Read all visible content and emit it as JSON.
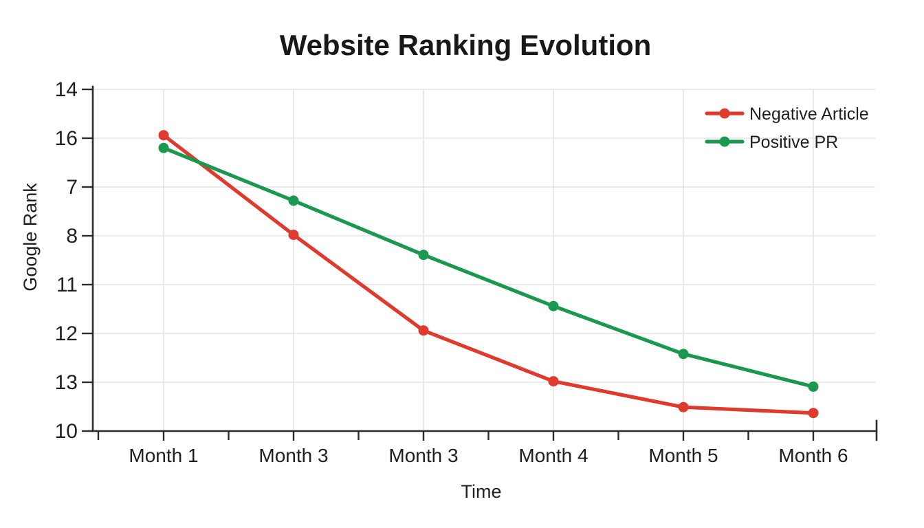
{
  "chart_data": {
    "type": "line",
    "title": "Website Ranking Evolution",
    "xlabel": "Time",
    "ylabel": "Google Rank",
    "categories": [
      "Month 1",
      "Month 3",
      "Month 3",
      "Month 4",
      "Month 5",
      "Month 6"
    ],
    "y_tick_labels_top_to_bottom": [
      "14",
      "16",
      "7",
      "8",
      "11",
      "12",
      "13",
      "10"
    ],
    "grid": true,
    "legend_position": "top-right-inside",
    "series": [
      {
        "name": "Negative Article",
        "color": "#e0392d",
        "values_grid_steps_from_top": [
          0.94,
          2.98,
          4.94,
          5.98,
          6.51,
          6.63
        ]
      },
      {
        "name": "Positive PR",
        "color": "#1a9850",
        "values_grid_steps_from_top": [
          1.2,
          2.28,
          3.39,
          4.44,
          5.42,
          6.09
        ]
      }
    ],
    "style_colors": {
      "grid": "#e4e4e4",
      "axis": "#2b2b2b",
      "text": "#1f1f1f",
      "background": "#ffffff"
    }
  }
}
